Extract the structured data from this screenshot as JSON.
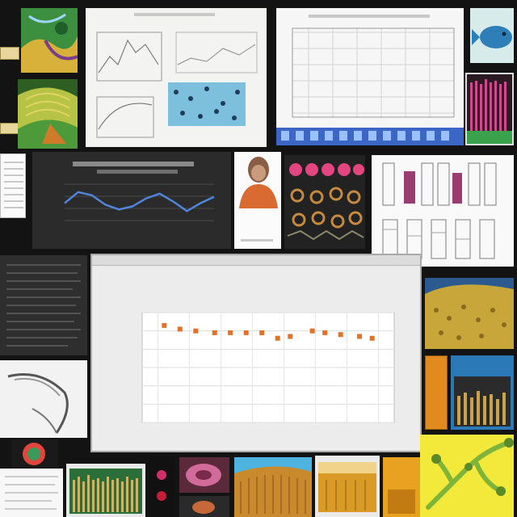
{
  "main_chart": {
    "type": "scatter",
    "title_line1": "",
    "title_line2": "",
    "xlabel": "",
    "ylabel": "",
    "x_tick_labels": [
      "",
      "",
      "",
      "",
      "",
      "",
      "",
      ""
    ],
    "y_tick_labels": [
      "",
      "",
      "",
      "",
      "",
      "",
      ""
    ],
    "y_range": [
      0,
      6
    ],
    "grid": true,
    "point_color": "#e0722a",
    "points": [
      {
        "x": 1.2,
        "y": 5.3
      },
      {
        "x": 1.7,
        "y": 5.1
      },
      {
        "x": 2.2,
        "y": 5.0
      },
      {
        "x": 2.8,
        "y": 4.9
      },
      {
        "x": 3.3,
        "y": 4.9
      },
      {
        "x": 3.8,
        "y": 4.9
      },
      {
        "x": 4.3,
        "y": 4.9
      },
      {
        "x": 4.8,
        "y": 4.6
      },
      {
        "x": 5.2,
        "y": 4.7
      },
      {
        "x": 5.9,
        "y": 5.0
      },
      {
        "x": 6.3,
        "y": 4.9
      },
      {
        "x": 6.8,
        "y": 4.8
      },
      {
        "x": 7.4,
        "y": 4.7
      },
      {
        "x": 7.8,
        "y": 4.6
      }
    ]
  },
  "dark_line_chart": {
    "type": "line",
    "title": "",
    "line_color": "#4f86d9",
    "values": [
      2.6,
      3.3,
      3.1,
      2.5,
      2.2,
      2.4,
      2.9,
      3.2,
      2.7,
      2.1,
      2.6,
      3.0
    ]
  },
  "grid_chart": {
    "type": "scatter",
    "title": "",
    "point_color": "#444444"
  },
  "colors": {
    "background": "#131313",
    "accent_orange": "#e0722a",
    "line_blue": "#4f86d9",
    "paper": "#f3f3f1"
  }
}
